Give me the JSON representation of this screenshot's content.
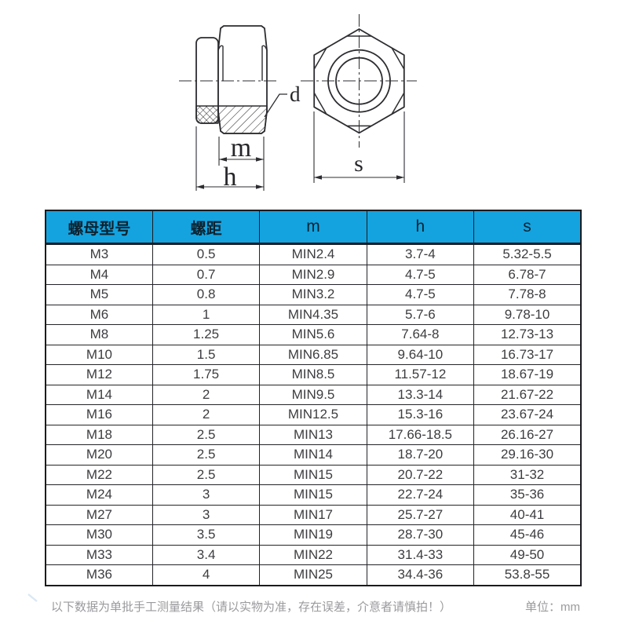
{
  "drawing": {
    "labels": {
      "d": "d",
      "m": "m",
      "h": "h",
      "s": "s"
    }
  },
  "table": {
    "header_bg": "#14a3df",
    "headers": [
      "螺母型号",
      "螺距",
      "m",
      "h",
      "s"
    ],
    "rows": [
      [
        "M3",
        "0.5",
        "MIN2.4",
        "3.7-4",
        "5.32-5.5"
      ],
      [
        "M4",
        "0.7",
        "MIN2.9",
        "4.7-5",
        "6.78-7"
      ],
      [
        "M5",
        "0.8",
        "MIN3.2",
        "4.7-5",
        "7.78-8"
      ],
      [
        "M6",
        "1",
        "MIN4.35",
        "5.7-6",
        "9.78-10"
      ],
      [
        "M8",
        "1.25",
        "MIN5.6",
        "7.64-8",
        "12.73-13"
      ],
      [
        "M10",
        "1.5",
        "MIN6.85",
        "9.64-10",
        "16.73-17"
      ],
      [
        "M12",
        "1.75",
        "MIN8.5",
        "11.57-12",
        "18.67-19"
      ],
      [
        "M14",
        "2",
        "MIN9.5",
        "13.3-14",
        "21.67-22"
      ],
      [
        "M16",
        "2",
        "MIN12.5",
        "15.3-16",
        "23.67-24"
      ],
      [
        "M18",
        "2.5",
        "MIN13",
        "17.66-18.5",
        "26.16-27"
      ],
      [
        "M20",
        "2.5",
        "MIN14",
        "18.7-20",
        "29.16-30"
      ],
      [
        "M22",
        "2.5",
        "MIN15",
        "20.7-22",
        "31-32"
      ],
      [
        "M24",
        "3",
        "MIN15",
        "22.7-24",
        "35-36"
      ],
      [
        "M27",
        "3",
        "MIN17",
        "25.7-27",
        "40-41"
      ],
      [
        "M30",
        "3.5",
        "MIN19",
        "28.7-30",
        "45-46"
      ],
      [
        "M33",
        "3.4",
        "MIN22",
        "31.4-33",
        "49-50"
      ],
      [
        "M36",
        "4",
        "MIN25",
        "34.4-36",
        "53.8-55"
      ]
    ]
  },
  "footer": {
    "note": "以下数据为单批手工测量结果（请以实物为准，存在误差，介意者请慎拍！）",
    "unit_label": "单位：mm"
  }
}
